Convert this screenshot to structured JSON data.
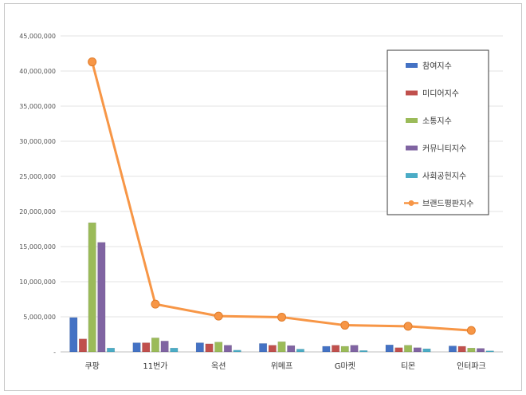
{
  "chart_data": {
    "type": "bar",
    "title": "",
    "xlabel": "",
    "ylabel": "",
    "ylim": [
      0,
      45000000
    ],
    "yticks": [
      0,
      5000000,
      10000000,
      15000000,
      20000000,
      25000000,
      30000000,
      35000000,
      40000000,
      45000000
    ],
    "ytick_labels": [
      "-",
      "5,000,000",
      "10,000,000",
      "15,000,000",
      "20,000,000",
      "25,000,000",
      "30,000,000",
      "35,000,000",
      "40,000,000",
      "45,000,000"
    ],
    "grid": true,
    "legend_position": "top-right",
    "categories": [
      "쿠팡",
      "11번가",
      "옥션",
      "위메프",
      "G마켓",
      "티몬",
      "인터파크"
    ],
    "series": [
      {
        "name": "참여지수",
        "kind": "bar",
        "color": "#4472C4",
        "values": [
          4900000,
          1300000,
          1300000,
          1200000,
          800000,
          1000000,
          850000
        ]
      },
      {
        "name": "미디어지수",
        "kind": "bar",
        "color": "#C0504D",
        "values": [
          1850000,
          1300000,
          1150000,
          950000,
          950000,
          600000,
          800000
        ]
      },
      {
        "name": "소통지수",
        "kind": "bar",
        "color": "#9BBB59",
        "values": [
          18400000,
          2000000,
          1400000,
          1450000,
          800000,
          950000,
          550000
        ]
      },
      {
        "name": "커뮤니티지수",
        "kind": "bar",
        "color": "#8064A2",
        "values": [
          15600000,
          1550000,
          950000,
          900000,
          950000,
          600000,
          500000
        ]
      },
      {
        "name": "사회공헌지수",
        "kind": "bar",
        "color": "#4BACC6",
        "values": [
          550000,
          550000,
          250000,
          400000,
          200000,
          450000,
          150000
        ]
      },
      {
        "name": "브랜드평판지수",
        "kind": "line",
        "color": "#F79646",
        "values": [
          41300000,
          6800000,
          5100000,
          4950000,
          3800000,
          3650000,
          3050000
        ]
      }
    ]
  }
}
